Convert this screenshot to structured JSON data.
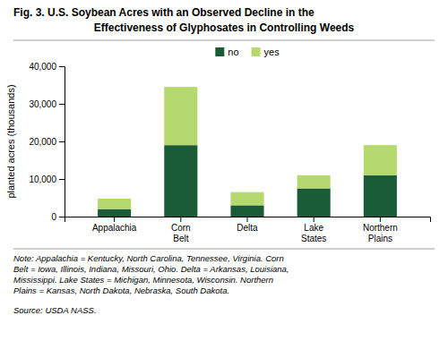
{
  "chart_data": {
    "type": "bar",
    "stacked": true,
    "title": "Fig. 3. U.S. Soybean Acres with an Observed Decline in the",
    "subtitle": "Effectiveness of Glyphosates in Controlling Weeds",
    "categories": [
      "Appalachia",
      "Corn\nBelt",
      "Delta",
      "Lake\nStates",
      "Northern\nPlains"
    ],
    "series": [
      {
        "name": "no",
        "color": "#1a5c38",
        "values": [
          2000,
          19000,
          3000,
          7500,
          11000
        ]
      },
      {
        "name": "yes",
        "color": "#b5d96e",
        "values": [
          2800,
          15500,
          3500,
          3500,
          8000
        ]
      }
    ],
    "y_label": "planted acres (thousands)",
    "ylim": [
      0,
      40000
    ],
    "yticks": [
      0,
      {
        "value": 10000,
        "label": "10,000"
      },
      {
        "value": 20000,
        "label": "20,000"
      },
      {
        "value": 30000,
        "label": "30,000"
      },
      {
        "value": 40000,
        "label": "40,000"
      }
    ],
    "grid": false,
    "legend": "top",
    "annotations": [
      "Note: Appalachia = Kentucky, North Carolina, Tennessee, Virginia. Corn\nBelt = Iowa, Illinois, Indiana, Missouri, Ohio. Delta = Arkansas, Louisiana,\nMississippi. Lake States = Michigan, Minnesota, Wisconsin. Northern\nPlains = Kansas, North Dakota, Nebraska, South Dakota.",
      "Source: USDA NASS."
    ]
  }
}
